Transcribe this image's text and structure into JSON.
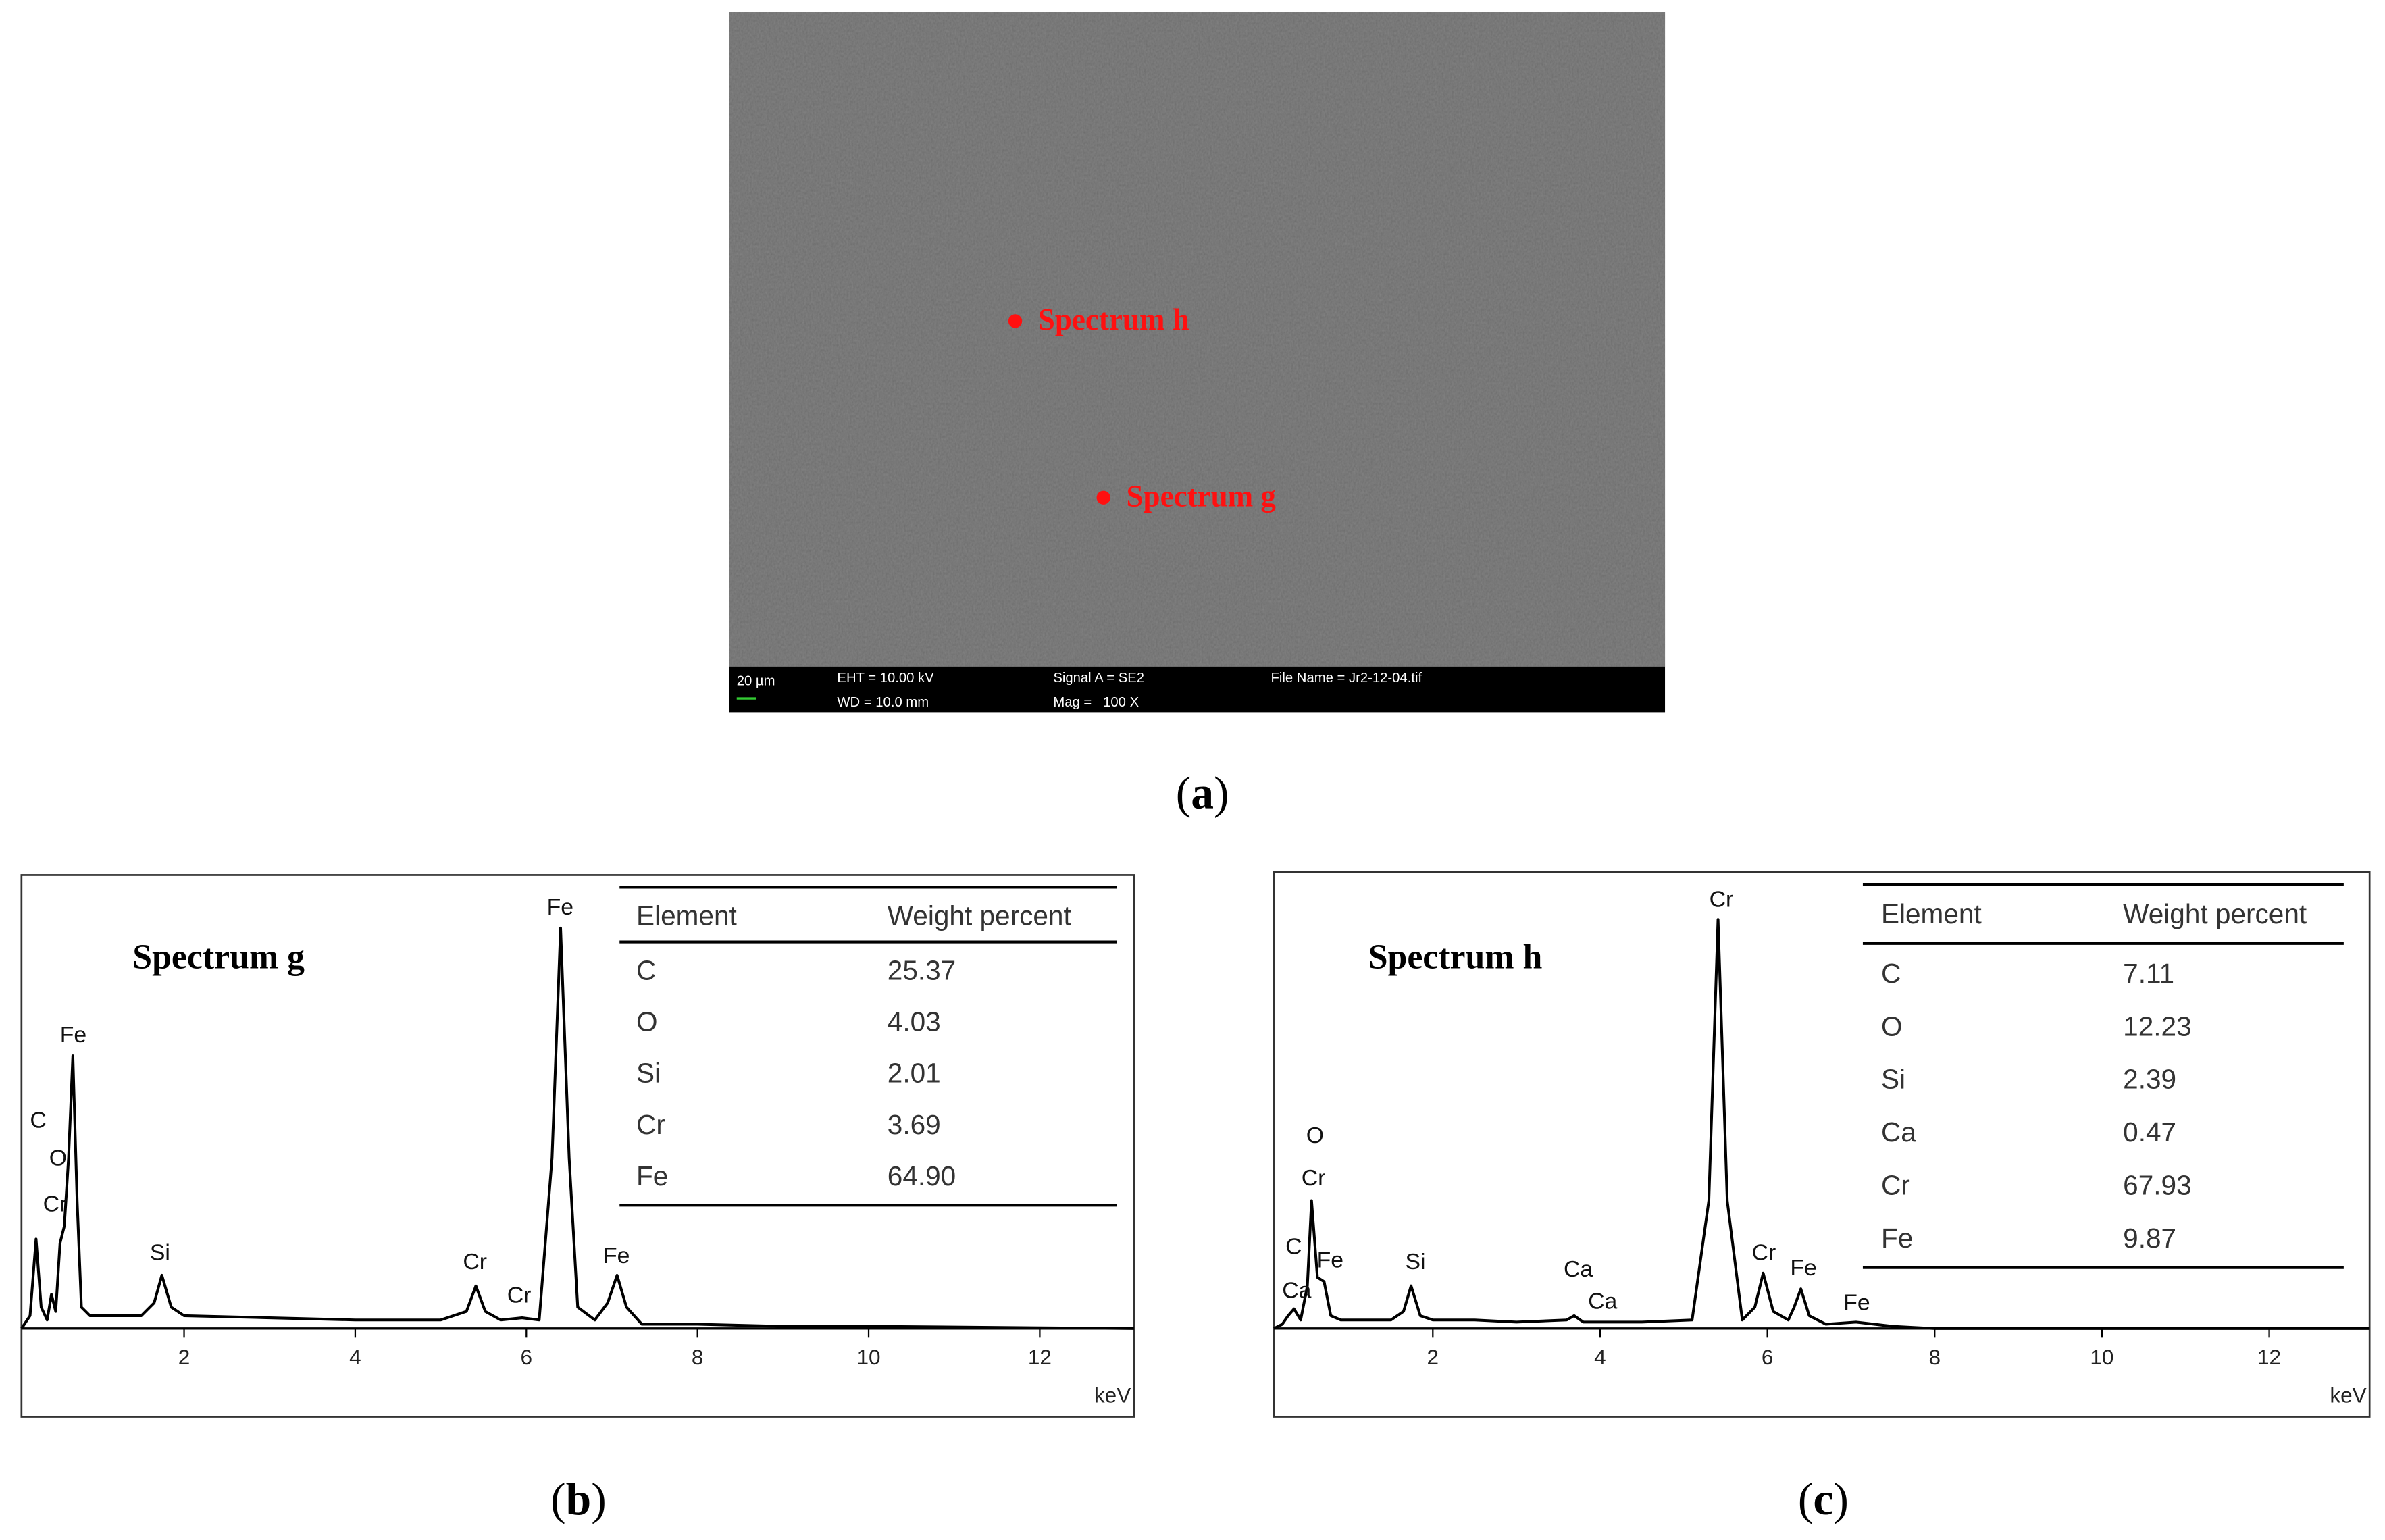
{
  "panel_a": {
    "markers": [
      "Spectrum h",
      "Spectrum g"
    ],
    "info_bar": [
      "20 µm",
      "EHT = 10.00 kV",
      "WD = 10.0 mm",
      "Signal A = SE2",
      "Mag =   100 X",
      "File Name = Jr2-12-04.tif"
    ],
    "caption": [
      "(",
      "a",
      ")"
    ]
  },
  "chart_data": [
    {
      "type": "line",
      "title": "Spectrum g",
      "x_label": "keV",
      "xlim": [
        0.1,
        13.1
      ],
      "xticks": [
        2,
        4,
        6,
        8,
        10,
        12
      ],
      "ylim": [
        0,
        100
      ],
      "series": [
        {
          "color": "#000000",
          "x": [
            0.1,
            0.2,
            0.27,
            0.33,
            0.4,
            0.45,
            0.5,
            0.55,
            0.6,
            0.65,
            0.7,
            0.75,
            0.8,
            0.9,
            1.2,
            1.5,
            1.65,
            1.74,
            1.85,
            2,
            3,
            4,
            5,
            5.3,
            5.41,
            5.52,
            5.7,
            5.95,
            6.15,
            6.3,
            6.4,
            6.5,
            6.6,
            6.8,
            6.95,
            7.06,
            7.17,
            7.35,
            8,
            9,
            10,
            13.1
          ],
          "values": [
            0,
            3,
            21,
            5,
            2,
            8,
            4,
            20,
            24,
            40,
            64,
            30,
            5,
            3,
            3,
            3,
            6,
            12.5,
            5,
            3,
            2.5,
            2,
            2,
            4,
            10,
            4,
            2,
            2.5,
            2,
            40,
            94,
            40,
            5,
            2,
            6,
            12.5,
            5,
            1,
            1,
            0.5,
            0.5,
            0
          ]
        }
      ],
      "peak_labels": [
        "C",
        "O",
        "Cr",
        "Fe",
        "Si",
        "Cr",
        "Cr",
        "Fe",
        "Fe"
      ],
      "table": {
        "header": [
          "Element",
          "Weight percent"
        ],
        "rows": [
          [
            "C",
            "25.37"
          ],
          [
            "O",
            "4.03"
          ],
          [
            "Si",
            "2.01"
          ],
          [
            "Cr",
            "3.69"
          ],
          [
            "Fe",
            "64.90"
          ]
        ]
      },
      "caption": [
        "(",
        "b",
        ")"
      ]
    },
    {
      "type": "line",
      "title": "Spectrum h",
      "x_label": "keV",
      "xlim": [
        0.1,
        13.2
      ],
      "xticks": [
        2,
        4,
        6,
        8,
        10,
        12
      ],
      "ylim": [
        0,
        100
      ],
      "series": [
        {
          "color": "#000000",
          "x": [
            0.1,
            0.2,
            0.27,
            0.34,
            0.42,
            0.5,
            0.55,
            0.62,
            0.7,
            0.78,
            0.9,
            1.5,
            1.65,
            1.74,
            1.85,
            2,
            2.5,
            3,
            3.6,
            3.69,
            3.8,
            4.01,
            4.5,
            5.1,
            5.3,
            5.41,
            5.52,
            5.7,
            5.85,
            5.95,
            6.07,
            6.25,
            6.32,
            6.4,
            6.5,
            6.7,
            7.06,
            7.5,
            8,
            13.2
          ],
          "values": [
            0,
            1,
            3,
            4.6,
            2,
            10,
            30,
            12,
            11,
            3,
            2,
            2,
            4,
            10,
            3,
            2,
            2,
            1.5,
            2,
            3,
            1.5,
            1.5,
            1.5,
            2,
            30,
            96,
            30,
            2,
            5,
            13,
            4,
            2,
            5,
            9.3,
            3,
            1,
            1.5,
            0.5,
            0,
            0
          ]
        }
      ],
      "peak_labels": [
        "O",
        "Cr",
        "C",
        "Fe",
        "Ca",
        "Si",
        "Ca",
        "Ca",
        "Cr",
        "Cr",
        "Fe",
        "Fe"
      ],
      "table": {
        "header": [
          "Element",
          "Weight percent"
        ],
        "rows": [
          [
            "C",
            "7.11"
          ],
          [
            "O",
            "12.23"
          ],
          [
            "Si",
            "2.39"
          ],
          [
            "Ca",
            "0.47"
          ],
          [
            "Cr",
            "67.93"
          ],
          [
            "Fe",
            "9.87"
          ]
        ]
      },
      "caption": [
        "(",
        "c",
        ")"
      ]
    }
  ]
}
